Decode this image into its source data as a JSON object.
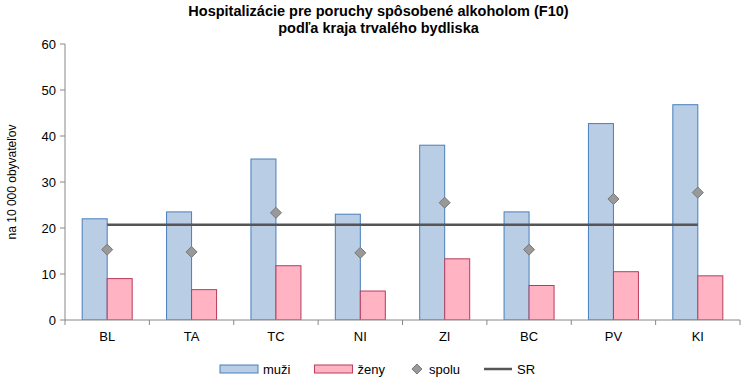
{
  "chart_data": {
    "type": "bar",
    "title": "Hospitalizácie pre poruchy spôsobené alkoholom (F10)",
    "subtitle": "podľa kraja trvalého bydliska",
    "y_label": "na 10 000 obyvateľov",
    "categories": [
      "BL",
      "TA",
      "TC",
      "NI",
      "ZI",
      "BC",
      "PV",
      "KI"
    ],
    "series": [
      {
        "name": "muži",
        "type": "bar",
        "color": "#b9cde5",
        "values": [
          22,
          23.5,
          35,
          23,
          38,
          23.5,
          42.7,
          46.8
        ]
      },
      {
        "name": "ženy",
        "type": "bar",
        "color": "#ffb3c3",
        "values": [
          9,
          6.6,
          11.8,
          6.3,
          13.3,
          7.5,
          10.5,
          9.6
        ]
      },
      {
        "name": "spolu",
        "type": "scatter",
        "marker": "diamond",
        "color": "#999999",
        "values": [
          15.3,
          14.8,
          23.3,
          14.6,
          25.5,
          15.3,
          26.3,
          27.7
        ]
      },
      {
        "name": "SR",
        "type": "line",
        "line_style": "solid",
        "color": "#555555",
        "values": [
          20.7,
          20.7,
          20.7,
          20.7,
          20.7,
          20.7,
          20.7,
          20.7
        ]
      }
    ],
    "ylim": [
      0,
      60
    ],
    "yticks": [
      0,
      10,
      20,
      30,
      40,
      50,
      60
    ],
    "grid": false,
    "legend": "bottom"
  }
}
